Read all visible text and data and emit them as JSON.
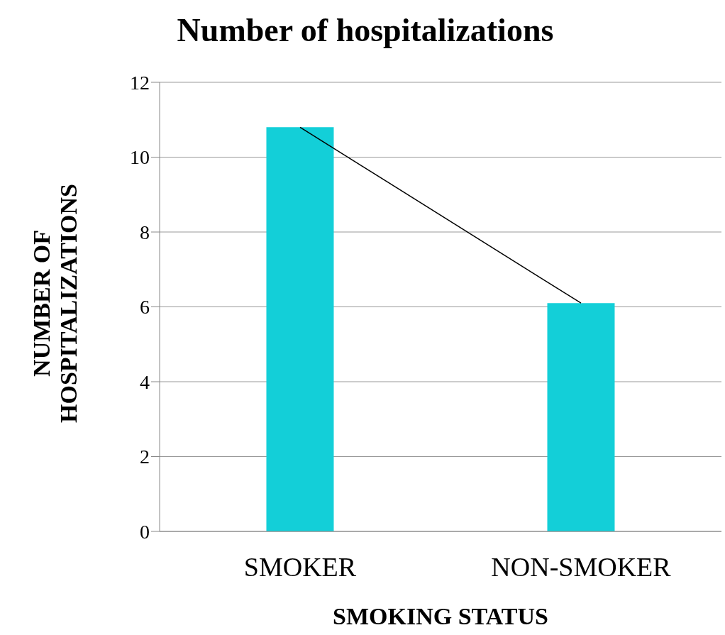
{
  "chart_data": {
    "type": "bar",
    "title": "Number of hospitalizations",
    "xlabel": "SMOKING STATUS",
    "ylabel": "NUMBER OF HOSPITALIZATIONS",
    "categories": [
      "SMOKER",
      "NON-SMOKER"
    ],
    "series": [
      {
        "type": "line",
        "color": "#000000",
        "values": [
          10.8,
          6.1
        ]
      },
      {
        "color": "#13cfd8",
        "values": [
          10.8,
          6.1
        ]
      }
    ],
    "ylim": [
      0,
      12
    ],
    "yticks": [
      0,
      2,
      4,
      6,
      8,
      10,
      12
    ],
    "grid": "y"
  }
}
